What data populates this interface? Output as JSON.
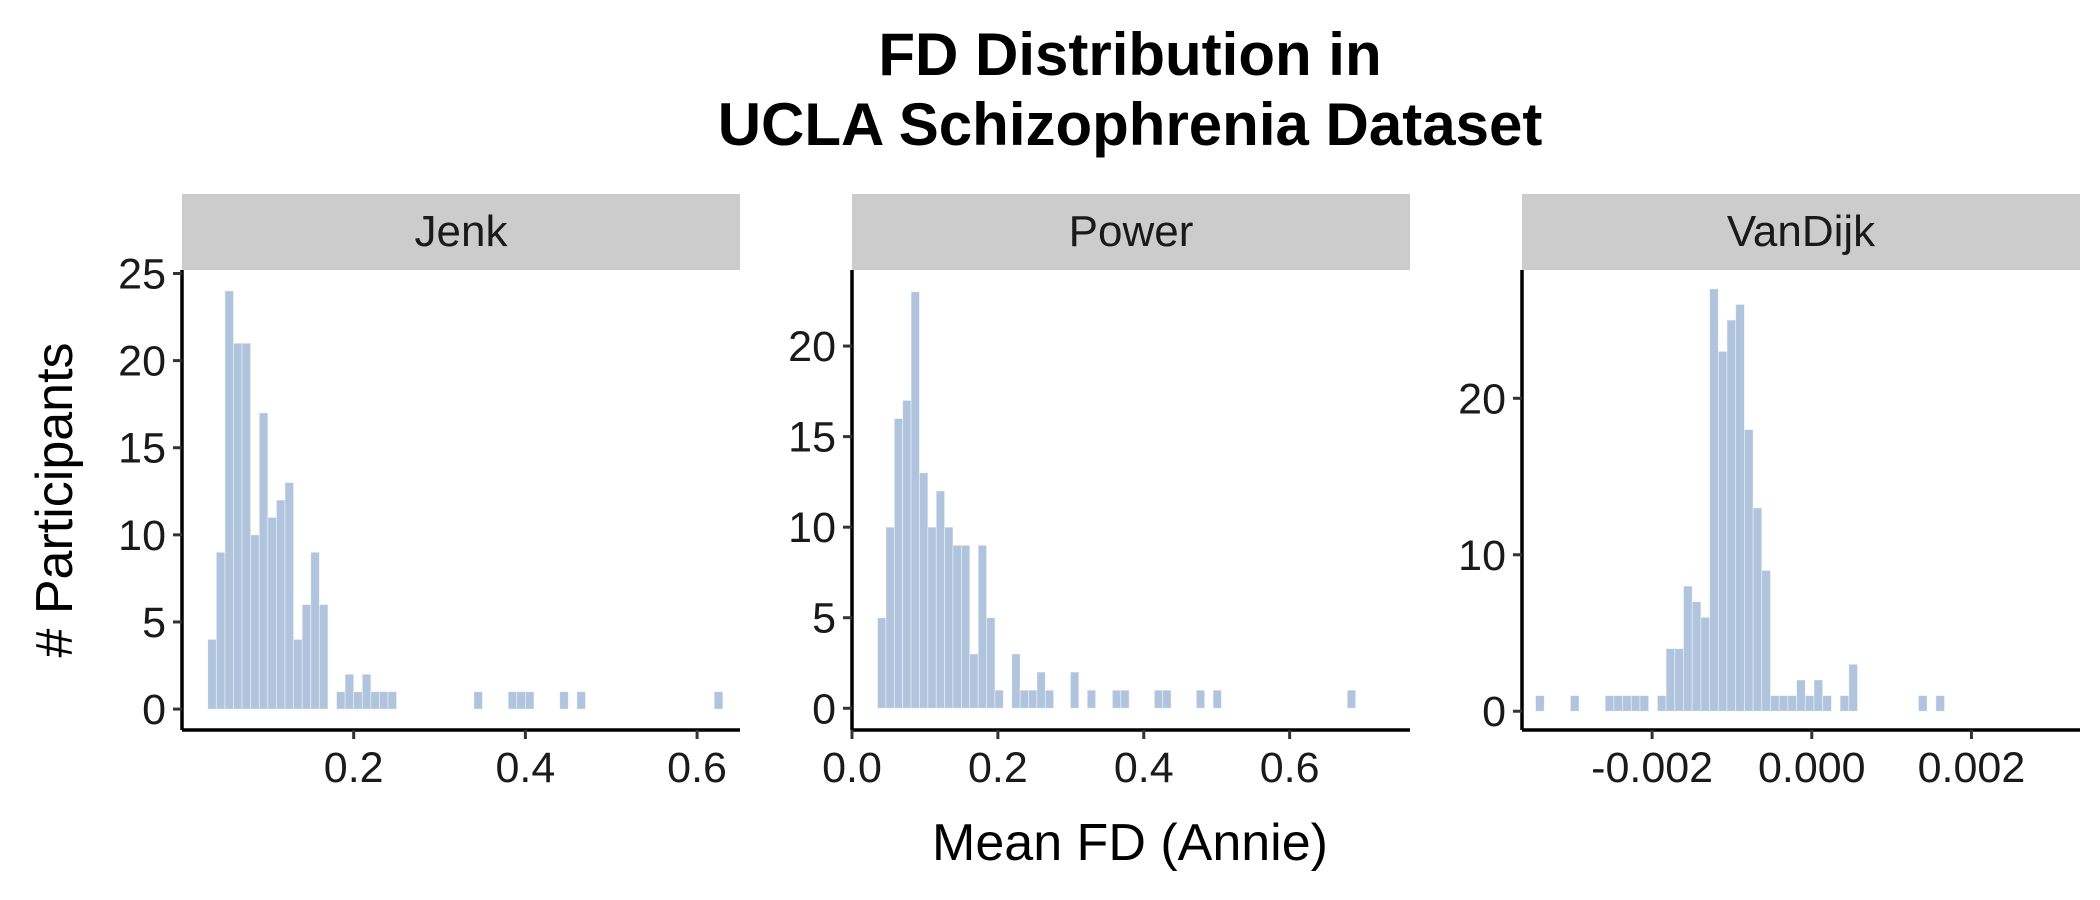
{
  "chart_data": {
    "type": "bar",
    "title_line1": "FD Distribution in",
    "title_line2": "UCLA Schizophrenia Dataset",
    "xlabel": "Mean FD (Annie)",
    "ylabel": "# Participants",
    "bar_color": "#b0c4de",
    "grid": false,
    "panels": [
      {
        "name": "Jenk",
        "xlim": [
          0.0,
          0.65
        ],
        "ylim": [
          -1.2,
          25.2
        ],
        "xticks": [
          0.2,
          0.4,
          0.6
        ],
        "xtick_labels": [
          "0.2",
          "0.4",
          "0.6"
        ],
        "yticks": [
          0,
          5,
          10,
          15,
          20,
          25
        ],
        "ytick_labels": [
          "0",
          "5",
          "10",
          "15",
          "20",
          "25"
        ],
        "bin_start": 0.03,
        "bin_width": 0.01,
        "counts": [
          4,
          9,
          24,
          21,
          21,
          10,
          17,
          11,
          12,
          13,
          4,
          6,
          9,
          6,
          0,
          1,
          2,
          1,
          2,
          1,
          1,
          1,
          0,
          0,
          0,
          0,
          0,
          0,
          0,
          0,
          0,
          1,
          0,
          0,
          0,
          1,
          1,
          1,
          0,
          0,
          0,
          1,
          0,
          1,
          0,
          0,
          0,
          0,
          0,
          0,
          0,
          0,
          0,
          0,
          0,
          0,
          0,
          0,
          0,
          1
        ]
      },
      {
        "name": "Power",
        "xlim": [
          0.0,
          0.765
        ],
        "ylim": [
          -1.2,
          24.2
        ],
        "xticks": [
          0.0,
          0.2,
          0.4,
          0.6
        ],
        "xtick_labels": [
          "0.0",
          "0.2",
          "0.4",
          "0.6"
        ],
        "yticks": [
          0,
          5,
          10,
          15,
          20
        ],
        "ytick_labels": [
          "0",
          "5",
          "10",
          "15",
          "20"
        ],
        "bin_start": 0.035,
        "bin_width": 0.0115,
        "counts": [
          5,
          10,
          16,
          17,
          23,
          13,
          10,
          12,
          10,
          9,
          9,
          3,
          9,
          5,
          1,
          0,
          3,
          1,
          1,
          2,
          1,
          0,
          0,
          2,
          0,
          1,
          0,
          0,
          1,
          1,
          0,
          0,
          0,
          1,
          1,
          0,
          0,
          0,
          1,
          0,
          1,
          0,
          0,
          0,
          0,
          0,
          0,
          0,
          0,
          0,
          0,
          0,
          0,
          0,
          0,
          0,
          1
        ]
      },
      {
        "name": "VanDijk",
        "xlim": [
          -0.00363,
          0.00336
        ],
        "ylim": [
          -1.2,
          28.2
        ],
        "xticks": [
          -0.002,
          0.0,
          0.002
        ],
        "xtick_labels": [
          "-0.002",
          "0.000",
          "0.002"
        ],
        "yticks": [
          0,
          10,
          20
        ],
        "ytick_labels": [
          "0",
          "10",
          "20"
        ],
        "bin_start": -0.00346,
        "bin_width": 0.000109,
        "counts": [
          1,
          0,
          0,
          0,
          1,
          0,
          0,
          0,
          1,
          1,
          1,
          1,
          1,
          0,
          1,
          4,
          4,
          8,
          7,
          6,
          27,
          23,
          25,
          26,
          18,
          13,
          9,
          1,
          1,
          1,
          2,
          1,
          2,
          1,
          0,
          1,
          3,
          0,
          0,
          0,
          0,
          0,
          0,
          0,
          1,
          0,
          1
        ]
      }
    ]
  }
}
